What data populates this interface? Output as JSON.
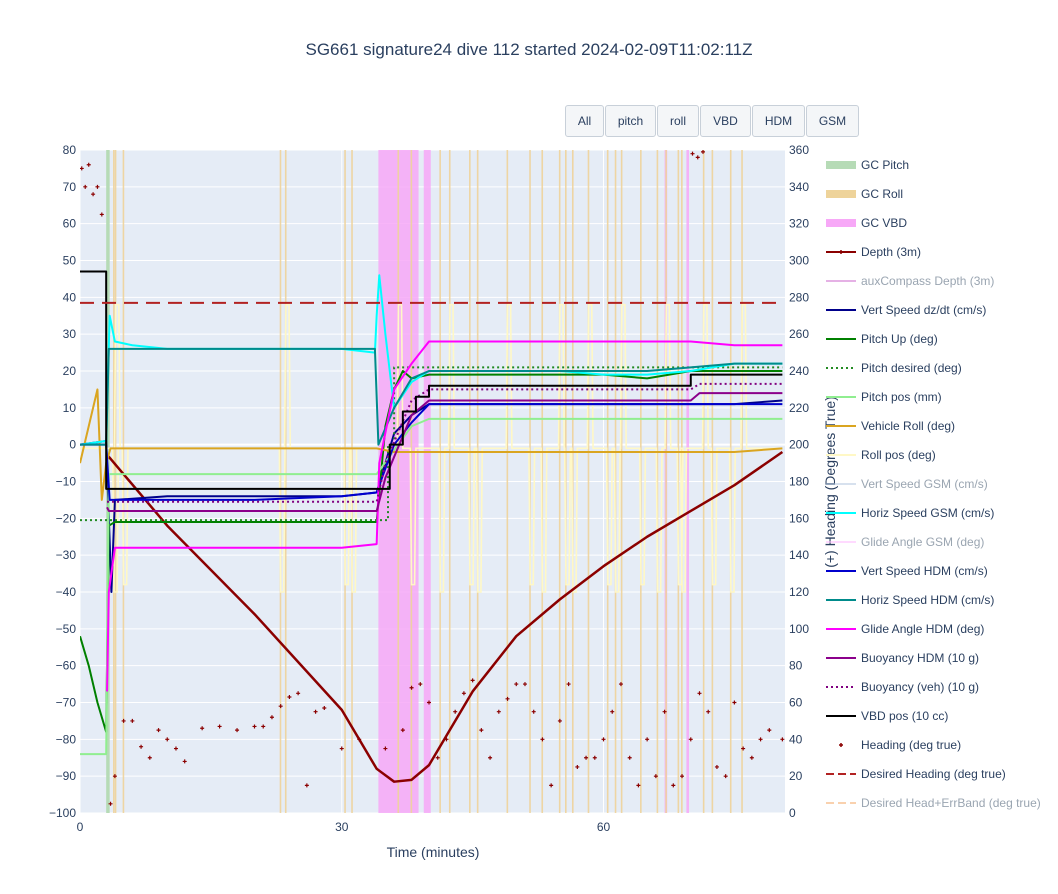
{
  "title": "SG661 signature24 dive 112 started 2024-02-09T11:02:11Z",
  "buttons": [
    "All",
    "pitch",
    "roll",
    "VBD",
    "HDM",
    "GSM"
  ],
  "chart_data": {
    "type": "line",
    "xlabel": "Time (minutes)",
    "ylabel": "",
    "y2label": "(+) Heading (Degrees True)",
    "xlim": [
      0,
      80.8
    ],
    "ylim": [
      -100,
      80
    ],
    "y2lim": [
      0,
      360
    ],
    "x_ticks": [
      0,
      30,
      60
    ],
    "y_ticks": [
      -100,
      -90,
      -80,
      -70,
      -60,
      -50,
      -40,
      -30,
      -20,
      -10,
      0,
      10,
      20,
      30,
      40,
      50,
      60,
      70,
      80
    ],
    "y2_ticks": [
      0,
      20,
      40,
      60,
      80,
      100,
      120,
      140,
      160,
      180,
      200,
      220,
      240,
      260,
      280,
      300,
      320,
      340,
      360
    ],
    "grid": true,
    "legend_position": "right",
    "vbd_bands": [
      [
        34.2,
        38.8
      ],
      [
        39.4,
        40.2
      ],
      [
        67.0,
        67.3
      ],
      [
        69.5,
        69.8
      ]
    ],
    "pitch_bands": [
      [
        3.0,
        3.4
      ]
    ],
    "roll_bands": [
      3.9,
      4.1,
      5.0,
      23.0,
      23.6,
      30.4,
      31.2,
      36.5,
      38.0,
      41.3,
      42.4,
      44.7,
      45.6,
      49.0,
      51.6,
      53.0,
      55.0,
      55.7,
      56.5,
      58.3,
      60.5,
      61.4,
      62.1,
      64.3,
      66.2,
      67.2,
      68.6,
      69.0,
      71.5,
      72.5,
      74.6,
      75.9
    ],
    "series": [
      {
        "name": "GC Pitch",
        "color": "#b6dbb6",
        "style": "band"
      },
      {
        "name": "GC Roll",
        "color": "#eed39a",
        "style": "band"
      },
      {
        "name": "GC VBD",
        "color": "#f7a8f7",
        "style": "band"
      },
      {
        "name": "Depth (3m)",
        "color": "#8b0000",
        "style": "line-markers",
        "x": [
          3.2,
          10,
          20,
          30,
          34,
          36,
          38,
          40,
          45,
          50,
          55,
          60,
          65,
          70,
          75,
          80.5
        ],
        "values": [
          -3,
          -22,
          -46,
          -72,
          -88,
          -91.5,
          -91,
          -87,
          -67,
          -52,
          -42,
          -33,
          -25,
          -18,
          -11,
          -2
        ]
      },
      {
        "name": "auxCompass Depth (3m)",
        "color": "#cc66cc",
        "style": "line",
        "visible": false
      },
      {
        "name": "Vert Speed dz/dt (cm/s)",
        "color": "#00008b",
        "style": "line",
        "x": [
          0,
          3,
          3.6,
          4,
          10,
          20,
          30,
          34,
          36,
          38,
          40,
          45,
          50,
          55,
          60,
          65,
          70,
          75,
          80.5
        ],
        "values": [
          0,
          1,
          -40,
          -15,
          -14,
          -14,
          -14,
          -13,
          3,
          8,
          11,
          11,
          11,
          11,
          11,
          11,
          11,
          11,
          12
        ]
      },
      {
        "name": "Pitch Up (deg)",
        "color": "#008000",
        "style": "line",
        "x": [
          0,
          1,
          2,
          3,
          3.3,
          4,
          10,
          20,
          30,
          34,
          35,
          36,
          37,
          38,
          40,
          45,
          50,
          55,
          60,
          65,
          70,
          75,
          80.5
        ],
        "values": [
          -52,
          -60,
          -70,
          -78,
          -22,
          -21,
          -21,
          -21,
          -21,
          -21,
          5,
          15,
          20,
          18,
          19,
          19,
          19,
          19,
          19,
          18,
          20,
          20,
          20
        ]
      },
      {
        "name": "Pitch desired (deg)",
        "color": "#228b22",
        "style": "dot",
        "x": [
          0,
          35.3,
          35.3,
          36,
          36,
          80.5
        ],
        "values": [
          -20.5,
          -20.5,
          0,
          0,
          21,
          21
        ]
      },
      {
        "name": "Pitch pos (mm)",
        "color": "#90ee90",
        "style": "line",
        "x": [
          0,
          3,
          3.3,
          34,
          38,
          40,
          80.5
        ],
        "values": [
          -84,
          -84,
          -8,
          -8,
          5,
          7,
          7
        ]
      },
      {
        "name": "Vehicle Roll (deg)",
        "color": "#daa520",
        "style": "line",
        "x": [
          0,
          1,
          2,
          2.5,
          3,
          3.5,
          10,
          20,
          30,
          34,
          36,
          38,
          40,
          45,
          50,
          55,
          60,
          65,
          70,
          75,
          80.5
        ],
        "values": [
          -5,
          5,
          15,
          -15,
          -5,
          -1,
          -1,
          -1,
          -1,
          -1,
          -2,
          -2,
          -2,
          -2,
          -2,
          -2,
          -2,
          -2,
          -2,
          -2,
          -1
        ]
      },
      {
        "name": "Roll pos (deg)",
        "color": "#fff8c6",
        "style": "line",
        "x": [
          0,
          80.5
        ],
        "values": [
          0,
          0
        ]
      },
      {
        "name": "Vert Speed GSM (cm/s)",
        "color": "#b0c4de",
        "style": "line",
        "visible": false
      },
      {
        "name": "Horiz Speed GSM (cm/s)",
        "color": "#00ffff",
        "style": "line",
        "x": [
          0,
          3,
          3.4,
          4,
          6,
          10,
          20,
          30,
          33.8,
          34,
          34.3,
          35,
          36,
          38,
          40,
          45,
          50,
          55,
          60,
          65,
          70,
          75,
          80.5
        ],
        "values": [
          0,
          1,
          35,
          28,
          27,
          26,
          26,
          26,
          25,
          35,
          46,
          30,
          10,
          17,
          20,
          20,
          20,
          20,
          19,
          19,
          20,
          22,
          22
        ]
      },
      {
        "name": "Glide Angle GSM (deg)",
        "color": "#ffb6ff",
        "style": "line",
        "visible": false
      },
      {
        "name": "Vert Speed HDM (cm/s)",
        "color": "#0000cd",
        "style": "line",
        "x": [
          0,
          3,
          3.4,
          4,
          10,
          20,
          30,
          34,
          36,
          38,
          40,
          45,
          50,
          55,
          60,
          65,
          70,
          75,
          80.5
        ],
        "values": [
          0,
          0,
          -15,
          -15,
          -15,
          -15,
          -14,
          -13,
          0,
          6,
          11,
          11,
          11,
          11,
          11,
          11,
          11,
          11,
          11
        ]
      },
      {
        "name": "Horiz Speed HDM (cm/s)",
        "color": "#008b8b",
        "style": "line",
        "x": [
          0,
          3,
          3.3,
          10,
          20,
          30,
          33.8,
          34.2,
          36,
          38,
          40,
          45,
          50,
          55,
          60,
          65,
          70,
          75,
          80.5
        ],
        "values": [
          0,
          0,
          26,
          26,
          26,
          26,
          26,
          0,
          10,
          18,
          20,
          20,
          20,
          20,
          20,
          20,
          21,
          22,
          22
        ]
      },
      {
        "name": "Glide Angle HDM (deg)",
        "color": "#ff00ff",
        "style": "line",
        "x": [
          3.1,
          3.3,
          4,
          10,
          20,
          30,
          34,
          34.3,
          36,
          38,
          40,
          45,
          50,
          55,
          60,
          65,
          70,
          75,
          80.5
        ],
        "values": [
          -67,
          -40,
          -28,
          -28,
          -28,
          -28,
          -27,
          -5,
          15,
          22,
          28,
          28,
          28,
          28,
          28,
          28,
          28,
          27,
          27
        ]
      },
      {
        "name": "Buoyancy HDM (10 g)",
        "color": "#8b008b",
        "style": "line",
        "x": [
          3.1,
          3.3,
          34,
          35,
          38,
          40,
          70,
          71,
          80.5
        ],
        "values": [
          -17,
          -18,
          -18,
          -9,
          8,
          12,
          12,
          14,
          14
        ]
      },
      {
        "name": "Buoyancy (veh) (10 g)",
        "color": "#800080",
        "style": "dot",
        "x": [
          3.1,
          34,
          35,
          38,
          40,
          70,
          71,
          80.5
        ],
        "values": [
          -15.5,
          -15.5,
          -5,
          12,
          15,
          15,
          16.5,
          16.5
        ]
      },
      {
        "name": "VBD pos (10 cc)",
        "color": "#000000",
        "style": "step",
        "x": [
          0,
          3,
          3,
          34,
          34,
          35.5,
          35.5,
          37,
          37,
          38.5,
          38.5,
          40,
          40,
          70,
          70,
          80.5
        ],
        "values": [
          47,
          47,
          -12,
          -12,
          -12,
          -12,
          0,
          0,
          9,
          9,
          13,
          13,
          16,
          16,
          19,
          19
        ]
      },
      {
        "name": "Heading (deg true)",
        "color": "#8b0000",
        "style": "markers",
        "axis": "y2",
        "x": [
          0.2,
          0.6,
          1,
          1.5,
          2,
          2.5,
          3.5,
          4,
          5,
          6,
          7,
          8,
          9,
          10,
          11,
          12,
          14,
          16,
          18,
          20,
          21,
          22,
          23,
          24,
          25,
          26,
          27,
          28,
          30,
          32,
          35,
          37,
          38,
          39,
          40,
          41,
          42,
          43,
          44,
          45,
          46,
          47,
          48,
          49,
          50,
          51,
          52,
          53,
          54,
          55,
          56,
          57,
          58,
          59,
          60,
          61,
          62,
          63,
          64,
          65,
          66,
          67,
          68,
          69,
          70,
          71,
          72,
          73,
          74,
          75,
          76,
          77,
          78,
          79,
          80.5,
          70.2,
          70.8,
          71.4
        ],
        "values": [
          350,
          340,
          352,
          336,
          340,
          325,
          5,
          20,
          50,
          50,
          36,
          30,
          45,
          40,
          35,
          28,
          46,
          47,
          45,
          47,
          47,
          52,
          58,
          63,
          65,
          15,
          55,
          57,
          35,
          40,
          35,
          45,
          68,
          70,
          60,
          30,
          40,
          55,
          65,
          72,
          45,
          30,
          55,
          62,
          70,
          70,
          55,
          40,
          15,
          50,
          70,
          25,
          30,
          30,
          40,
          55,
          70,
          30,
          15,
          40,
          20,
          55,
          15,
          20,
          40,
          65,
          55,
          25,
          20,
          60,
          35,
          30,
          40,
          45,
          40,
          358,
          356,
          359
        ]
      },
      {
        "name": "Desired Heading (deg true)",
        "color": "#b22222",
        "style": "dash",
        "axis": "y2",
        "x": [
          0,
          80.5
        ],
        "values": [
          277,
          277
        ]
      },
      {
        "name": "Desired Head+ErrBand (deg true)",
        "color": "#f4a460",
        "style": "dash",
        "visible": false
      }
    ]
  }
}
